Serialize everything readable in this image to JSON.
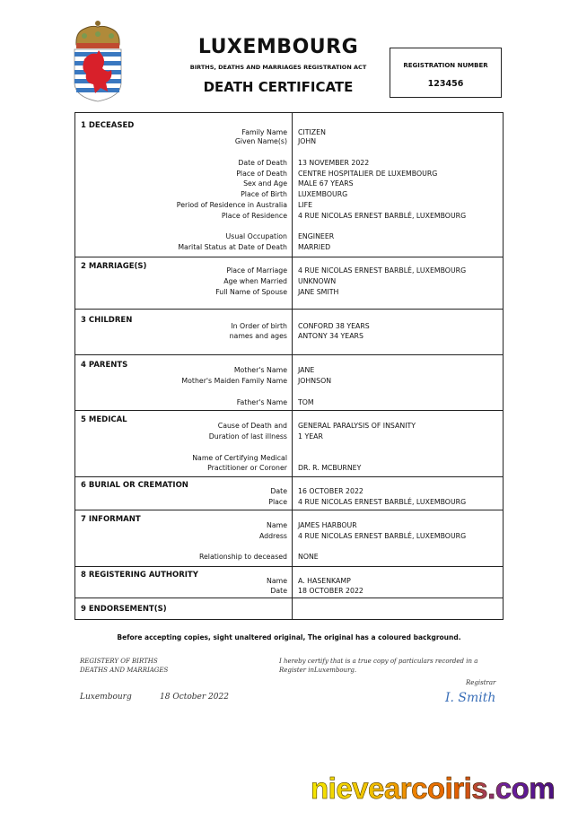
{
  "header": {
    "country": "LUXEMBOURG",
    "act": "BIRTHS, DEATHS AND MARRIAGES REGISTRATION ACT",
    "doc_title": "DEATH CERTIFICATE",
    "registration_label": "REGISTRATION NUMBER",
    "registration_number": "123456"
  },
  "sections": [
    {
      "title": "1 DECEASED",
      "rows": [
        {
          "label": "Family Name",
          "value": "CITIZEN"
        },
        {
          "label": "Given Name(s)",
          "value": "JOHN"
        },
        {
          "label": "Date of Death",
          "value": "13 NOVEMBER 2022"
        },
        {
          "label": "Place of Death",
          "value": "CENTRE HOSPITALIER DE LUXEMBOURG"
        },
        {
          "label": "Sex and Age",
          "value": "MALE 67 YEARS"
        },
        {
          "label": "Place of Birth",
          "value": "LUXEMBOURG"
        },
        {
          "label": "Period of Residence in Australia",
          "value": "LIFE"
        },
        {
          "label": "Place of Residence",
          "value": "4 RUE NICOLAS ERNEST BARBLÉ, LUXEMBOURG"
        },
        {
          "label": "Usual Occupation",
          "value": "ENGINEER"
        },
        {
          "label": "Marital Status at Date of Death",
          "value": "MARRIED"
        }
      ]
    },
    {
      "title": "2 MARRIAGE(S)",
      "rows": [
        {
          "label": "Place of Marriage",
          "value": "4 RUE NICOLAS ERNEST BARBLÉ, LUXEMBOURG"
        },
        {
          "label": "Age when Married",
          "value": "UNKNOWN"
        },
        {
          "label": "Full Name of Spouse",
          "value": "JANE SMITH"
        }
      ]
    },
    {
      "title": "3 CHILDREN",
      "rows": [
        {
          "label": "In Order of birth",
          "value": "CONFORD 38 YEARS"
        },
        {
          "label": "names and ages",
          "value": "ANTONY 34 YEARS"
        }
      ]
    },
    {
      "title": "4 PARENTS",
      "rows": [
        {
          "label": "Mother's Name",
          "value": "JANE"
        },
        {
          "label": "Mother's Maiden Family Name",
          "value": "JOHNSON"
        },
        {
          "label": "Father's Name",
          "value": "TOM"
        }
      ]
    },
    {
      "title": "5 MEDICAL",
      "rows": [
        {
          "label": "Cause of Death and",
          "value": "GENERAL PARALYSIS OF INSANITY"
        },
        {
          "label": "Duration of last illness",
          "value": "1 YEAR"
        },
        {
          "label": "Name of Certifying Medical",
          "value": ""
        },
        {
          "label": "Practitioner or Coroner",
          "value": "DR. R. MCBURNEY"
        }
      ]
    },
    {
      "title": "6 BURIAL OR CREMATION",
      "rows": [
        {
          "label": "Date",
          "value": "16 OCTOBER 2022"
        },
        {
          "label": "Place",
          "value": "4 RUE NICOLAS ERNEST BARBLÉ, LUXEMBOURG"
        }
      ]
    },
    {
      "title": "7 INFORMANT",
      "rows": [
        {
          "label": "Name",
          "value": "JAMES HARBOUR"
        },
        {
          "label": "Address",
          "value": "4 RUE NICOLAS ERNEST BARBLÉ, LUXEMBOURG"
        },
        {
          "label": "Relationship to deceased",
          "value": "NONE"
        }
      ]
    },
    {
      "title": "8 REGISTERING AUTHORITY",
      "rows": [
        {
          "label": "Name",
          "value": "A. HASENKAMP"
        },
        {
          "label": "Date",
          "value": "18 OCTOBER 2022"
        }
      ]
    },
    {
      "title": "9 ENDORSEMENT(S)",
      "rows": []
    }
  ],
  "footer": {
    "notice": "Before accepting copies, sight unaltered original, The original has a coloured background.",
    "registry_line1": "REGISTERY OF BIRTHS",
    "registry_line2": "DEATHS AND MARRIAGES",
    "certify_line1": "I hereby certify that is a true copy of particulars recorded in a",
    "certify_line2": "Register inLuxembourg.",
    "registrar_label": "Registrar",
    "signature": "I. Smith",
    "place": "Luxembourg",
    "date": "18 October 2022"
  },
  "watermark": "nievearcoiris.com",
  "colors": {
    "lion": "#d8202a",
    "stripe_blue": "#3a78c0",
    "crown_gold": "#b08a3a",
    "signature": "#3a6fb8"
  }
}
